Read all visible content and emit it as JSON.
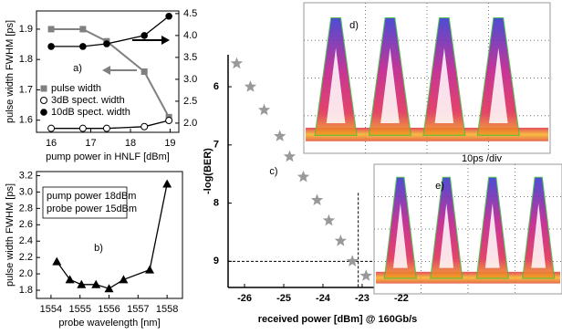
{
  "chart_data": [
    {
      "type": "line",
      "label": "a)",
      "x_label": "pump power in HNLF [dBm]",
      "y_label": "pulse width FWHM [ps]",
      "x": [
        16,
        16.8,
        17.4,
        18.35,
        18.97
      ],
      "series": [
        {
          "name": "pulse width",
          "color": "#808080",
          "marker": "square",
          "axis": "y",
          "values": [
            1.9,
            1.9,
            1.86,
            1.76,
            1.61
          ]
        },
        {
          "name": "3dB spect. width",
          "color": "#000000",
          "marker": "circle-open",
          "axis": "y2",
          "values": [
            1.88,
            1.88,
            1.88,
            1.92,
            2.06
          ]
        },
        {
          "name": "10dB spect. width",
          "color": "#000000",
          "marker": "circle",
          "axis": "y2",
          "values": [
            3.75,
            3.75,
            3.81,
            4.0,
            4.44
          ]
        }
      ],
      "xlim": [
        15.63,
        19.22
      ],
      "xticks": [
        16,
        17,
        18,
        19
      ],
      "ylim": [
        1.56,
        1.96
      ],
      "yticks": [
        1.6,
        1.7,
        1.8,
        1.9
      ],
      "y2lim": [
        1.79,
        4.56
      ],
      "y2ticks": [
        {
          "value": 2,
          "label": "2.0"
        },
        2.5,
        {
          "value": 3,
          "label": "3.0"
        },
        3.5,
        {
          "value": 4,
          "label": "4.0"
        },
        4.5
      ],
      "legend": "lower left"
    },
    {
      "type": "line",
      "label": "b)",
      "x_label": "probe wavelength [nm]",
      "y_label": "pulse width FWHM [ps]",
      "annotations": [
        "pump power 18dBm",
        "probe power 15dBm"
      ],
      "x": [
        1554.2,
        1554.65,
        1555.05,
        1555.55,
        1556,
        1556.5,
        1557.4,
        1558
      ],
      "values": [
        2.15,
        1.93,
        1.87,
        1.87,
        1.82,
        1.93,
        2.05,
        3.1
      ],
      "color": "#000000",
      "marker": "triangle",
      "xlim": [
        1553.5,
        1558.53
      ],
      "xticks": [
        1554,
        1555,
        1556,
        1557,
        1558
      ],
      "ylim": [
        1.7,
        3.25
      ],
      "yticks": [
        1.8,
        {
          "value": 2,
          "label": "2.0"
        },
        2.2,
        2.4,
        2.6,
        2.8,
        {
          "value": 3,
          "label": "3.0"
        },
        3.2
      ]
    },
    {
      "type": "scatter",
      "label": "c)",
      "x_label": "received power [dBm] @ 160Gb/s",
      "y_label": "-log(BER)",
      "x": [
        -26.2,
        -25.85,
        -25.5,
        -25.1,
        -24.85,
        -24.5,
        -24.15,
        -23.85,
        -23.55,
        -23.25,
        -22.9
      ],
      "values": [
        5.6,
        6.0,
        6.4,
        6.85,
        7.2,
        7.55,
        7.95,
        8.3,
        8.65,
        9.0,
        9.25
      ],
      "color": "#999999",
      "marker": "star",
      "xlim": [
        -26.42,
        -21.3
      ],
      "xticks": [
        -26,
        -25,
        -24,
        -23,
        -22
      ],
      "ylim": [
        9.45,
        5.45
      ],
      "yticks": [
        6,
        7,
        8,
        9
      ],
      "xref": -23.1,
      "yref": 9
    }
  ],
  "images": [
    {
      "label": "d)",
      "scale": "10ps /div"
    },
    {
      "label": "e)"
    }
  ]
}
